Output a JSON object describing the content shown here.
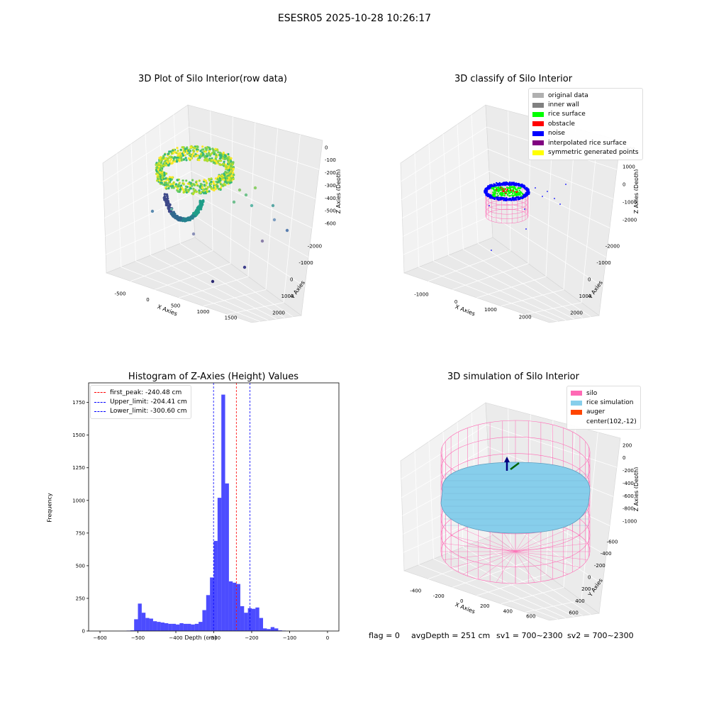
{
  "suptitle": "ESESR05 2025-10-28 10:26:17",
  "panels": {
    "raw": {
      "title": "3D Plot of Silo Interior(row data)",
      "xlabel": "X Axies",
      "ylabel": "Y Axies",
      "zlabel": "Z Axies (Depth)",
      "xticks": [
        "-500",
        "0",
        "500",
        "1000",
        "1500"
      ],
      "yticks": [
        "2000",
        "1000",
        "0",
        "-1000",
        "-2000"
      ],
      "zticks": [
        "0",
        "-100",
        "-200",
        "-300",
        "-400",
        "-500",
        "-600"
      ]
    },
    "classify": {
      "title": "3D classify of Silo Interior",
      "xlabel": "X Axies",
      "ylabel": "Y Axies",
      "zlabel": "Z Axies (Depth)",
      "xticks": [
        "-1000",
        "0",
        "1000",
        "2000"
      ],
      "yticks": [
        "2000",
        "1000",
        "0",
        "-1000",
        "-2000"
      ],
      "zticks": [
        "2000",
        "1000",
        "0",
        "-1000",
        "-2000"
      ],
      "legend": [
        {
          "label": "original data",
          "color": "#b0b0b0"
        },
        {
          "label": "inner wall",
          "color": "#808080"
        },
        {
          "label": "rice surface",
          "color": "#00ff00"
        },
        {
          "label": "obstacle",
          "color": "#ff0000"
        },
        {
          "label": "noise",
          "color": "#0000ff"
        },
        {
          "label": "interpolated rice surface",
          "color": "#800080"
        },
        {
          "label": "symmetric generated points",
          "color": "#ffff00"
        }
      ]
    },
    "simulation": {
      "title": "3D simulation of Silo Interior",
      "xlabel": "X Axies",
      "ylabel": "Y Axies",
      "zlabel": "Z Axies (Depth)",
      "xticks": [
        "-400",
        "-200",
        "0",
        "200",
        "400",
        "600"
      ],
      "yticks": [
        "600",
        "400",
        "200",
        "0",
        "-200",
        "-400",
        "-600"
      ],
      "zticks": [
        "200",
        "0",
        "-200",
        "-400",
        "-600",
        "-800",
        "-1000"
      ],
      "legend": [
        {
          "label": "silo",
          "color": "#ff69b4"
        },
        {
          "label": "rice simulation",
          "color": "#87ceeb"
        },
        {
          "label": "auger",
          "color": "#ff4500"
        },
        {
          "label": "center(102,-12)",
          "color": ""
        }
      ]
    }
  },
  "footer": {
    "flag": "flag = 0",
    "avg": "avgDepth = 251 cm",
    "sv1": "sv1 = 700~2300",
    "sv2": "sv2 = 700~2300"
  },
  "chart_data": {
    "type": "bar",
    "title": "Histogram of Z-Axies (Height) Values",
    "xlabel": "Depth (cm)",
    "ylabel": "Frequency",
    "xlim": [
      -630,
      30
    ],
    "ylim": [
      0,
      1900
    ],
    "xticks": [
      -600,
      -500,
      -400,
      -300,
      -200,
      -100,
      0
    ],
    "yticks": [
      0,
      250,
      500,
      750,
      1000,
      1250,
      1500,
      1750
    ],
    "bin_width": 10,
    "bin_edges_start": -530,
    "values": [
      3,
      5,
      90,
      210,
      140,
      100,
      95,
      75,
      70,
      65,
      60,
      55,
      55,
      50,
      60,
      55,
      55,
      50,
      55,
      70,
      160,
      275,
      410,
      690,
      1020,
      1810,
      1130,
      380,
      370,
      360,
      190,
      140,
      175,
      170,
      180,
      100,
      20,
      15,
      30,
      20,
      5,
      3
    ],
    "bar_color": "#0000ff",
    "bar_alpha": 0.7,
    "vlines": [
      {
        "label": "first_peak: -240.48 cm",
        "x": -240.48,
        "color": "#ff0000"
      },
      {
        "label": "Upper_limit: -204.41 cm",
        "x": -204.41,
        "color": "#0000ff"
      },
      {
        "label": "Lower_limit: -300.60 cm",
        "x": -300.6,
        "color": "#0000ff"
      }
    ],
    "legend_loc": "upper left",
    "grid": false
  }
}
